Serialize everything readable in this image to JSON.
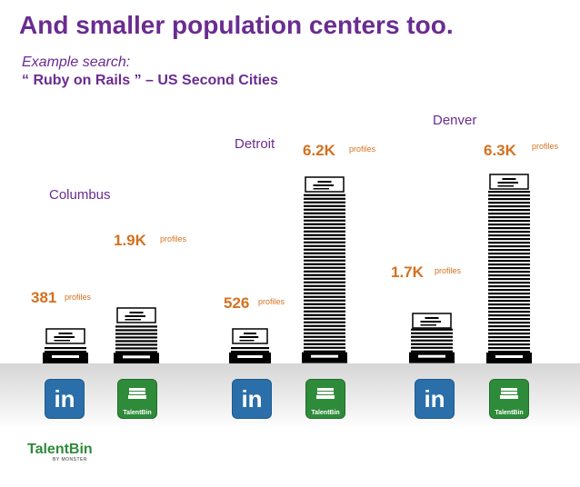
{
  "title": "And smaller population centers too.",
  "subtitle_line1": "Example search:",
  "subtitle_line2": "“ Ruby on Rails ” – US Second Cities",
  "unit_label": "profiles",
  "cities": [
    {
      "name": "Columbus",
      "linkedin": {
        "label": "381",
        "value": 381
      },
      "talentbin": {
        "label": "1.9K",
        "value": 1900
      }
    },
    {
      "name": "Detroit",
      "linkedin": {
        "label": "526",
        "value": 526
      },
      "talentbin": {
        "label": "6.2K",
        "value": 6200
      }
    },
    {
      "name": "Denver",
      "linkedin": {
        "label": "1.7K",
        "value": 1700
      },
      "talentbin": {
        "label": "6.3K",
        "value": 6300
      }
    }
  ],
  "logos": {
    "linkedin": "in",
    "talentbin": "TalentBin"
  },
  "brand": {
    "name": "TalentBin",
    "tagline": "BY MONSTER"
  },
  "colors": {
    "title": "#6a2c91",
    "value": "#d4711f",
    "linkedin": "#2a6fa9",
    "talentbin": "#2e8b3a"
  }
}
